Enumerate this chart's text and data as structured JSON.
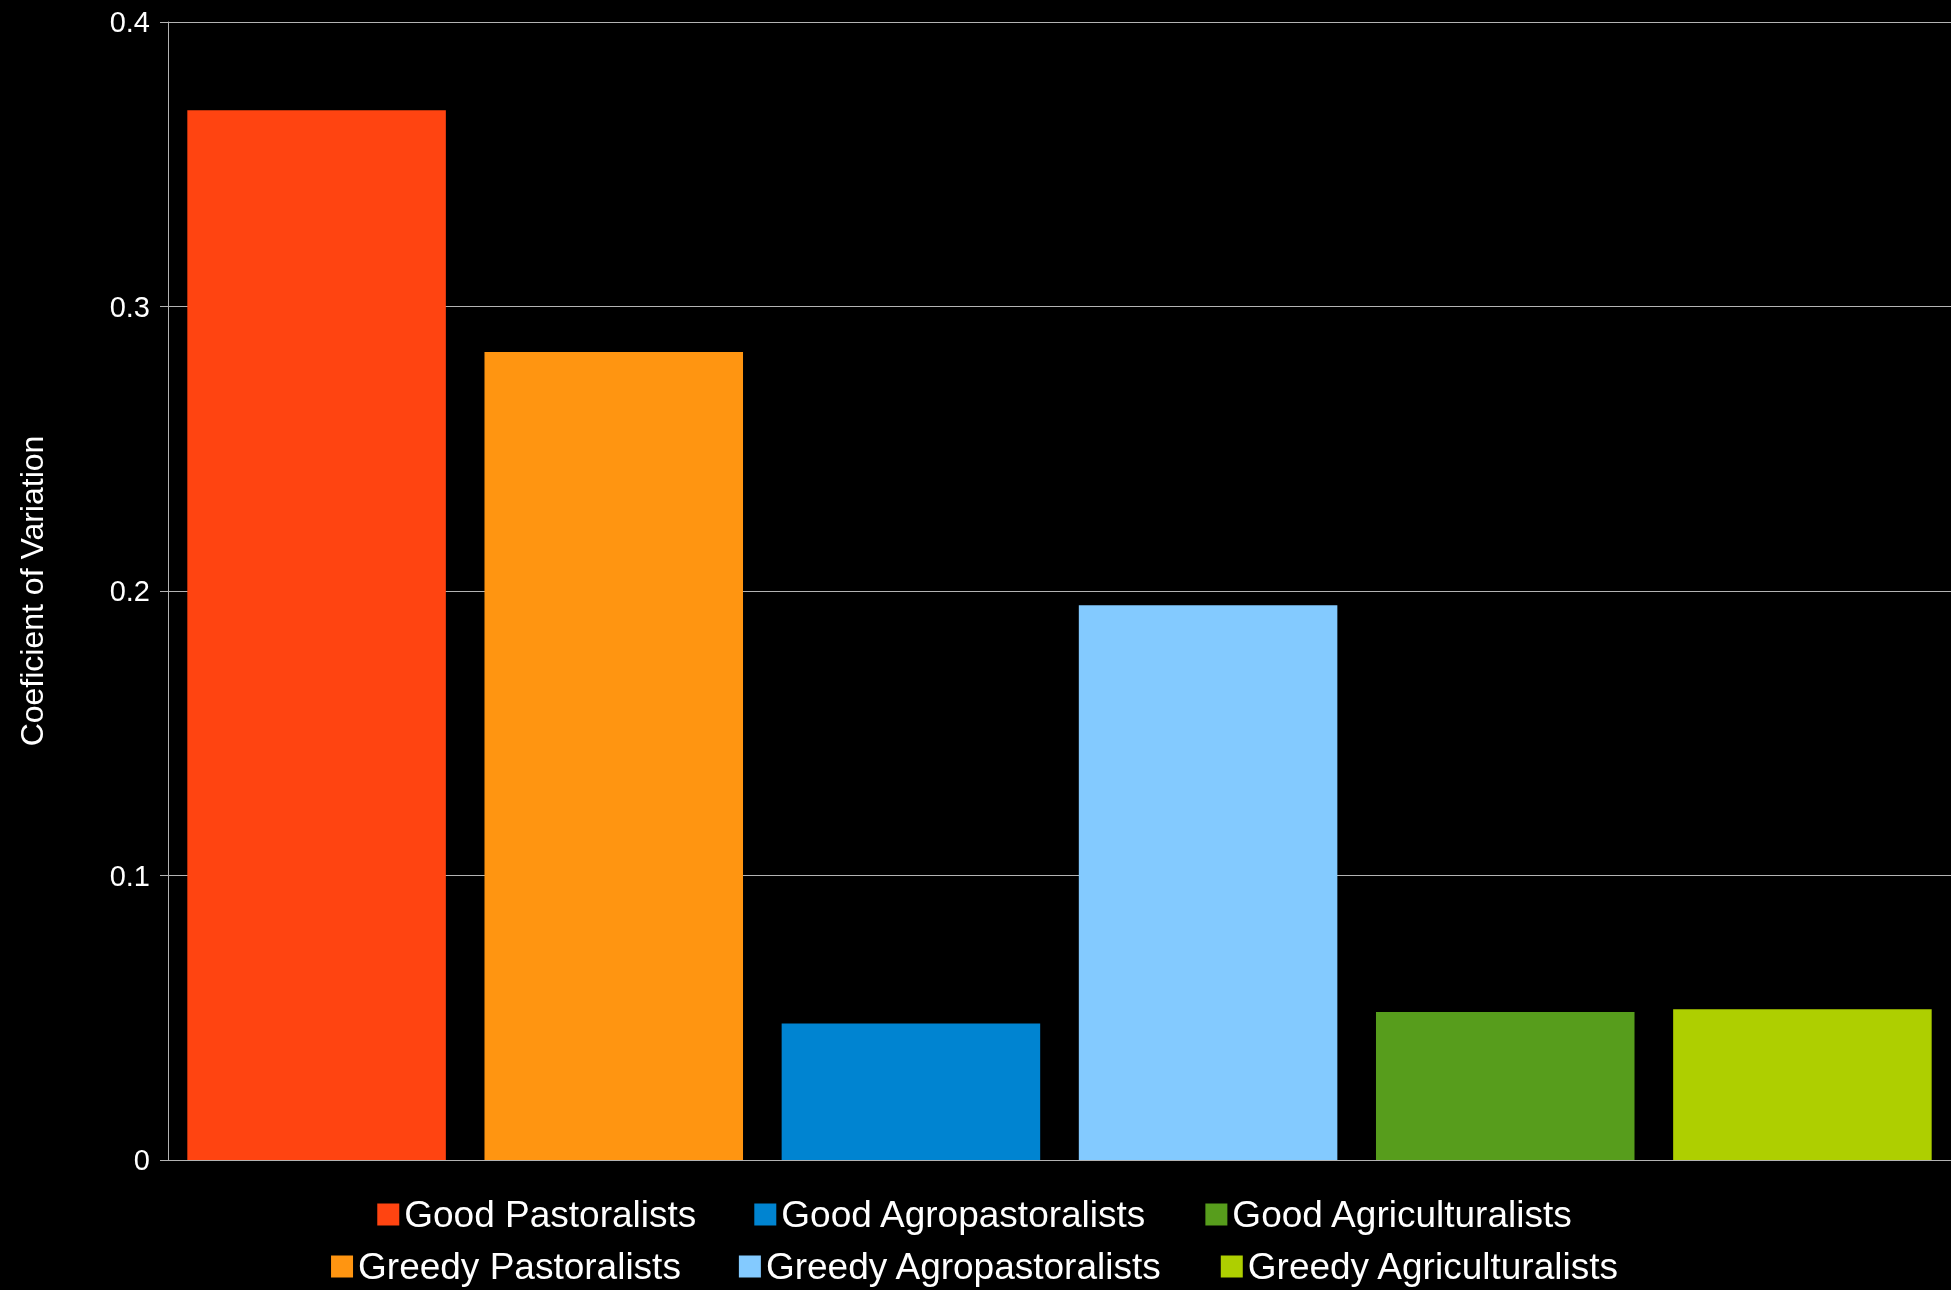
{
  "chart_data": {
    "type": "bar",
    "ylabel": "Coeficient of Variation",
    "categories": [
      null,
      null,
      null,
      null,
      null,
      null
    ],
    "series": [
      {
        "name": "Good Pastoralists",
        "color": "#ff4411",
        "values": [
          0.369,
          null,
          null,
          null,
          null,
          null
        ]
      },
      {
        "name": "Greedy Pastoralists",
        "color": "#ff9511",
        "values": [
          null,
          0.284,
          null,
          null,
          null,
          null
        ]
      },
      {
        "name": "Good Agropastoralists",
        "color": "#0084d1",
        "values": [
          null,
          null,
          0.048,
          null,
          null,
          null
        ]
      },
      {
        "name": "Greedy Agropastoralists",
        "color": "#83caff",
        "values": [
          null,
          null,
          null,
          0.195,
          null,
          null
        ]
      },
      {
        "name": "Good Agriculturalists",
        "color": "#579d1c",
        "values": [
          null,
          null,
          null,
          null,
          0.052,
          null
        ]
      },
      {
        "name": "Greedy Agriculturalists",
        "color": "#aecf00",
        "values": [
          null,
          null,
          null,
          null,
          null,
          0.053
        ]
      }
    ],
    "ylim": [
      0,
      0.4
    ],
    "yticks": [
      0,
      0.1,
      0.2,
      0.3,
      0.4
    ],
    "grid": "y",
    "legend": "bottom"
  }
}
